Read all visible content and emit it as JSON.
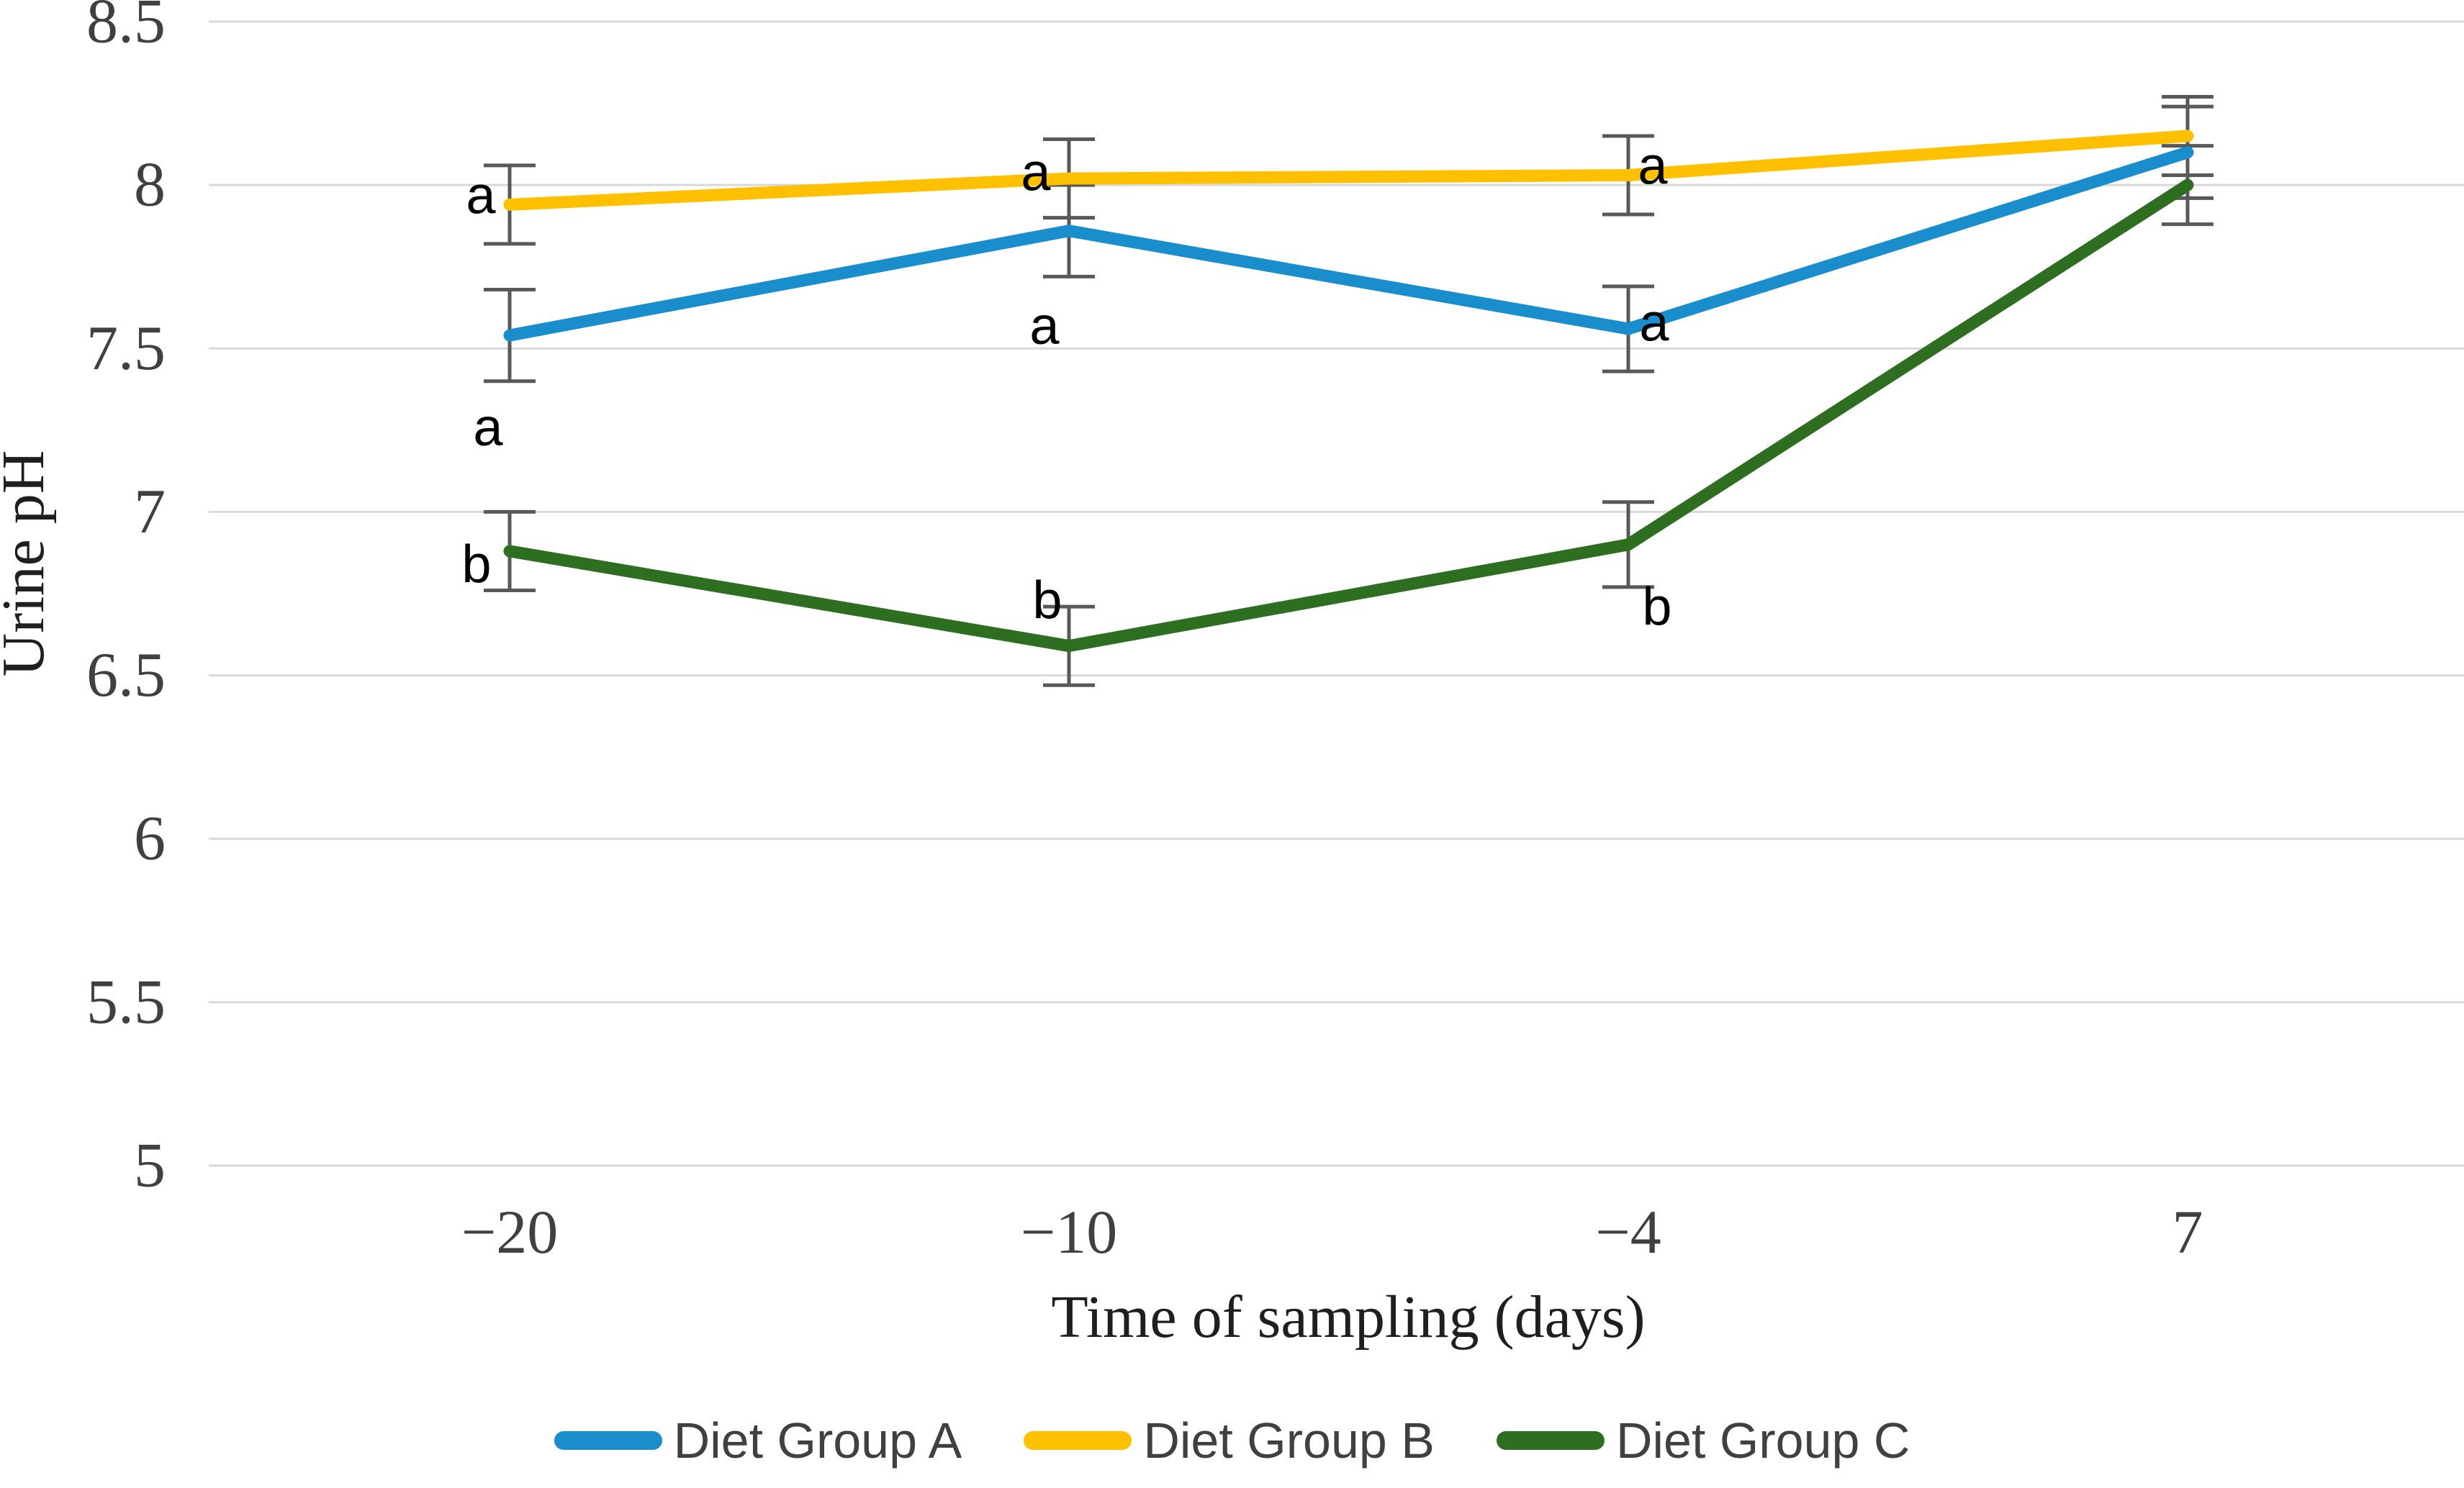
{
  "chart_data": {
    "type": "line",
    "title": "",
    "xlabel": "Time of sampling (days)",
    "ylabel": "Urine pH",
    "categories": [
      "−20",
      "−10",
      "−4",
      "7"
    ],
    "category_values": [
      -20,
      -10,
      -4,
      7
    ],
    "ylim": [
      5,
      8.5
    ],
    "ytick_values": [
      8.5,
      8,
      7.5,
      7,
      6.5,
      6,
      5.5,
      5
    ],
    "ytick_labels": [
      "8.5",
      "8",
      "7.5",
      "7",
      "6.5",
      "6",
      "5.5",
      "5"
    ],
    "grid": "horizontal",
    "legend_position": "bottom",
    "series": [
      {
        "name": "Diet Group A",
        "color": "#1A8DCD",
        "values": [
          7.54,
          7.86,
          7.56,
          8.1
        ],
        "errors": [
          0.14,
          0.14,
          0.13,
          0.14
        ]
      },
      {
        "name": "Diet Group B",
        "color": "#FFC000",
        "values": [
          7.94,
          8.02,
          8.03,
          8.15
        ],
        "errors": [
          0.12,
          0.12,
          0.12,
          0.12
        ]
      },
      {
        "name": "Diet Group C",
        "color": "#2D6E20",
        "values": [
          6.88,
          6.59,
          6.9,
          8.0
        ],
        "errors": [
          0.12,
          0.12,
          0.13,
          0.12
        ]
      }
    ],
    "annotations": [
      {
        "text": "a",
        "series": "Diet Group B",
        "point": 0,
        "ph": 7.97,
        "dx": -40
      },
      {
        "text": "a",
        "series": "Diet Group A",
        "point": 0,
        "ph": 7.26,
        "dx": -30
      },
      {
        "text": "b",
        "series": "Diet Group C",
        "point": 0,
        "ph": 6.84,
        "dx": -46
      },
      {
        "text": "a",
        "series": "Diet Group B",
        "point": 1,
        "ph": 8.04,
        "dx": -46
      },
      {
        "text": "a",
        "series": "Diet Group A",
        "point": 1,
        "ph": 7.57,
        "dx": -34
      },
      {
        "text": "b",
        "series": "Diet Group C",
        "point": 1,
        "ph": 6.73,
        "dx": -30
      },
      {
        "text": "a",
        "series": "Diet Group B",
        "point": 2,
        "ph": 8.06,
        "dx": 34
      },
      {
        "text": "a",
        "series": "Diet Group A",
        "point": 2,
        "ph": 7.58,
        "dx": 36
      },
      {
        "text": "b",
        "series": "Diet Group C",
        "point": 2,
        "ph": 6.71,
        "dx": 40
      }
    ],
    "colors": {
      "grid": "#D9D9D9",
      "error_bar": "#595959",
      "tick_text": "#404040",
      "axis_title_text": "#1F1F1F",
      "annotation_text": "#000000",
      "legend_text": "#404040"
    }
  }
}
